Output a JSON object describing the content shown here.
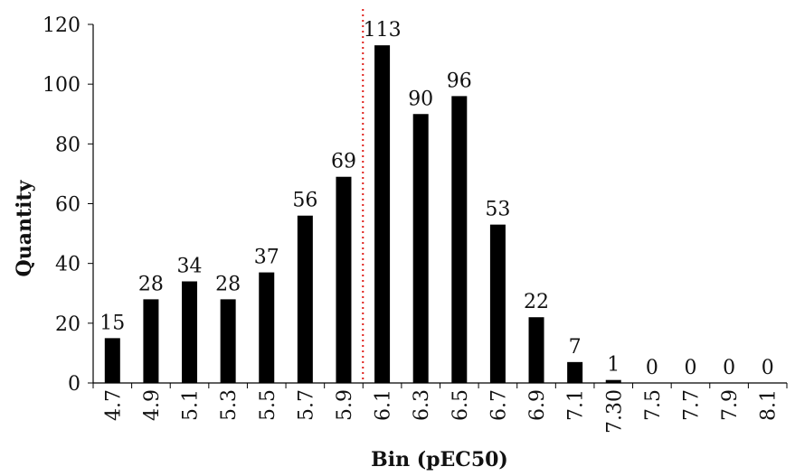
{
  "chart_data": {
    "type": "bar",
    "title": "",
    "xlabel": "Bin  (pEC50)",
    "ylabel": "Quantity",
    "categories": [
      "4.7",
      "4.9",
      "5.1",
      "5.3",
      "5.5",
      "5.7",
      "5.9",
      "6.1",
      "6.3",
      "6.5",
      "6.7",
      "6.9",
      "7.1",
      "7.30",
      "7.5",
      "7.7",
      "7.9",
      "8.1"
    ],
    "values": [
      15,
      28,
      34,
      28,
      37,
      56,
      69,
      113,
      90,
      96,
      53,
      22,
      7,
      1,
      0,
      0,
      0,
      0
    ],
    "data_labels": [
      "15",
      "28",
      "34",
      "28",
      "37",
      "56",
      "69",
      "113",
      "90",
      "96",
      "53",
      "22",
      "7",
      "1",
      "0",
      "0",
      "0",
      "0"
    ],
    "ylim": [
      0,
      120
    ],
    "yticks": [
      0,
      20,
      40,
      60,
      80,
      100,
      120
    ],
    "ytick_labels": [
      "0",
      "20",
      "40",
      "60",
      "80",
      "100",
      "120"
    ],
    "grid": false,
    "legend": "none",
    "reference_line": {
      "position": "between 5.9 and 6.1",
      "style": "dotted",
      "color": "#e0201b"
    },
    "colors": {
      "bar": "#000000",
      "axis": "#000000",
      "text": "#111111"
    }
  }
}
